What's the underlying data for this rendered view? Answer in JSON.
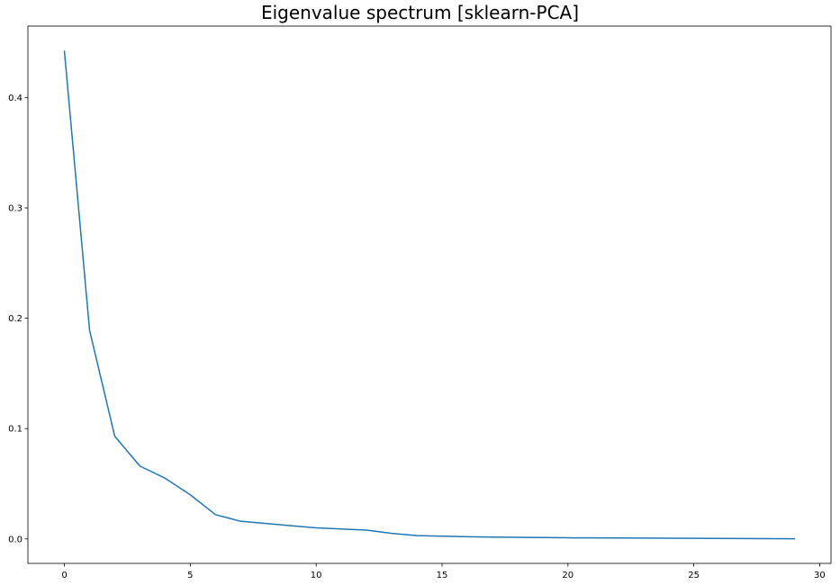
{
  "chart_data": {
    "type": "line",
    "title": "Eigenvalue spectrum [sklearn-PCA]",
    "xlabel": "",
    "ylabel": "",
    "xlim": [
      -1.45,
      30.45
    ],
    "ylim": [
      -0.0222,
      0.4648
    ],
    "xticks": [
      0,
      5,
      10,
      15,
      20,
      25,
      30
    ],
    "xtick_labels": [
      "0",
      "5",
      "10",
      "15",
      "20",
      "25",
      "30"
    ],
    "yticks": [
      0.0,
      0.1,
      0.2,
      0.3,
      0.4
    ],
    "ytick_labels": [
      "0.0",
      "0.1",
      "0.2",
      "0.3",
      "0.4"
    ],
    "grid": false,
    "legend": "none",
    "series": [
      {
        "color": "#1f77b4",
        "x": [
          0,
          1,
          2,
          3,
          4,
          5,
          6,
          7,
          8,
          9,
          10,
          11,
          12,
          13,
          14,
          15,
          16,
          17,
          18,
          19,
          20,
          21,
          22,
          23,
          24,
          25,
          26,
          27,
          28,
          29
        ],
        "values": [
          0.442,
          0.189,
          0.093,
          0.066,
          0.055,
          0.04,
          0.022,
          0.016,
          0.014,
          0.012,
          0.01,
          0.009,
          0.008,
          0.005,
          0.003,
          0.0025,
          0.002,
          0.0017,
          0.0015,
          0.0012,
          0.001,
          0.0009,
          0.0008,
          0.0007,
          0.0006,
          0.0005,
          0.0004,
          0.0003,
          0.0002,
          0.0001
        ]
      }
    ]
  }
}
